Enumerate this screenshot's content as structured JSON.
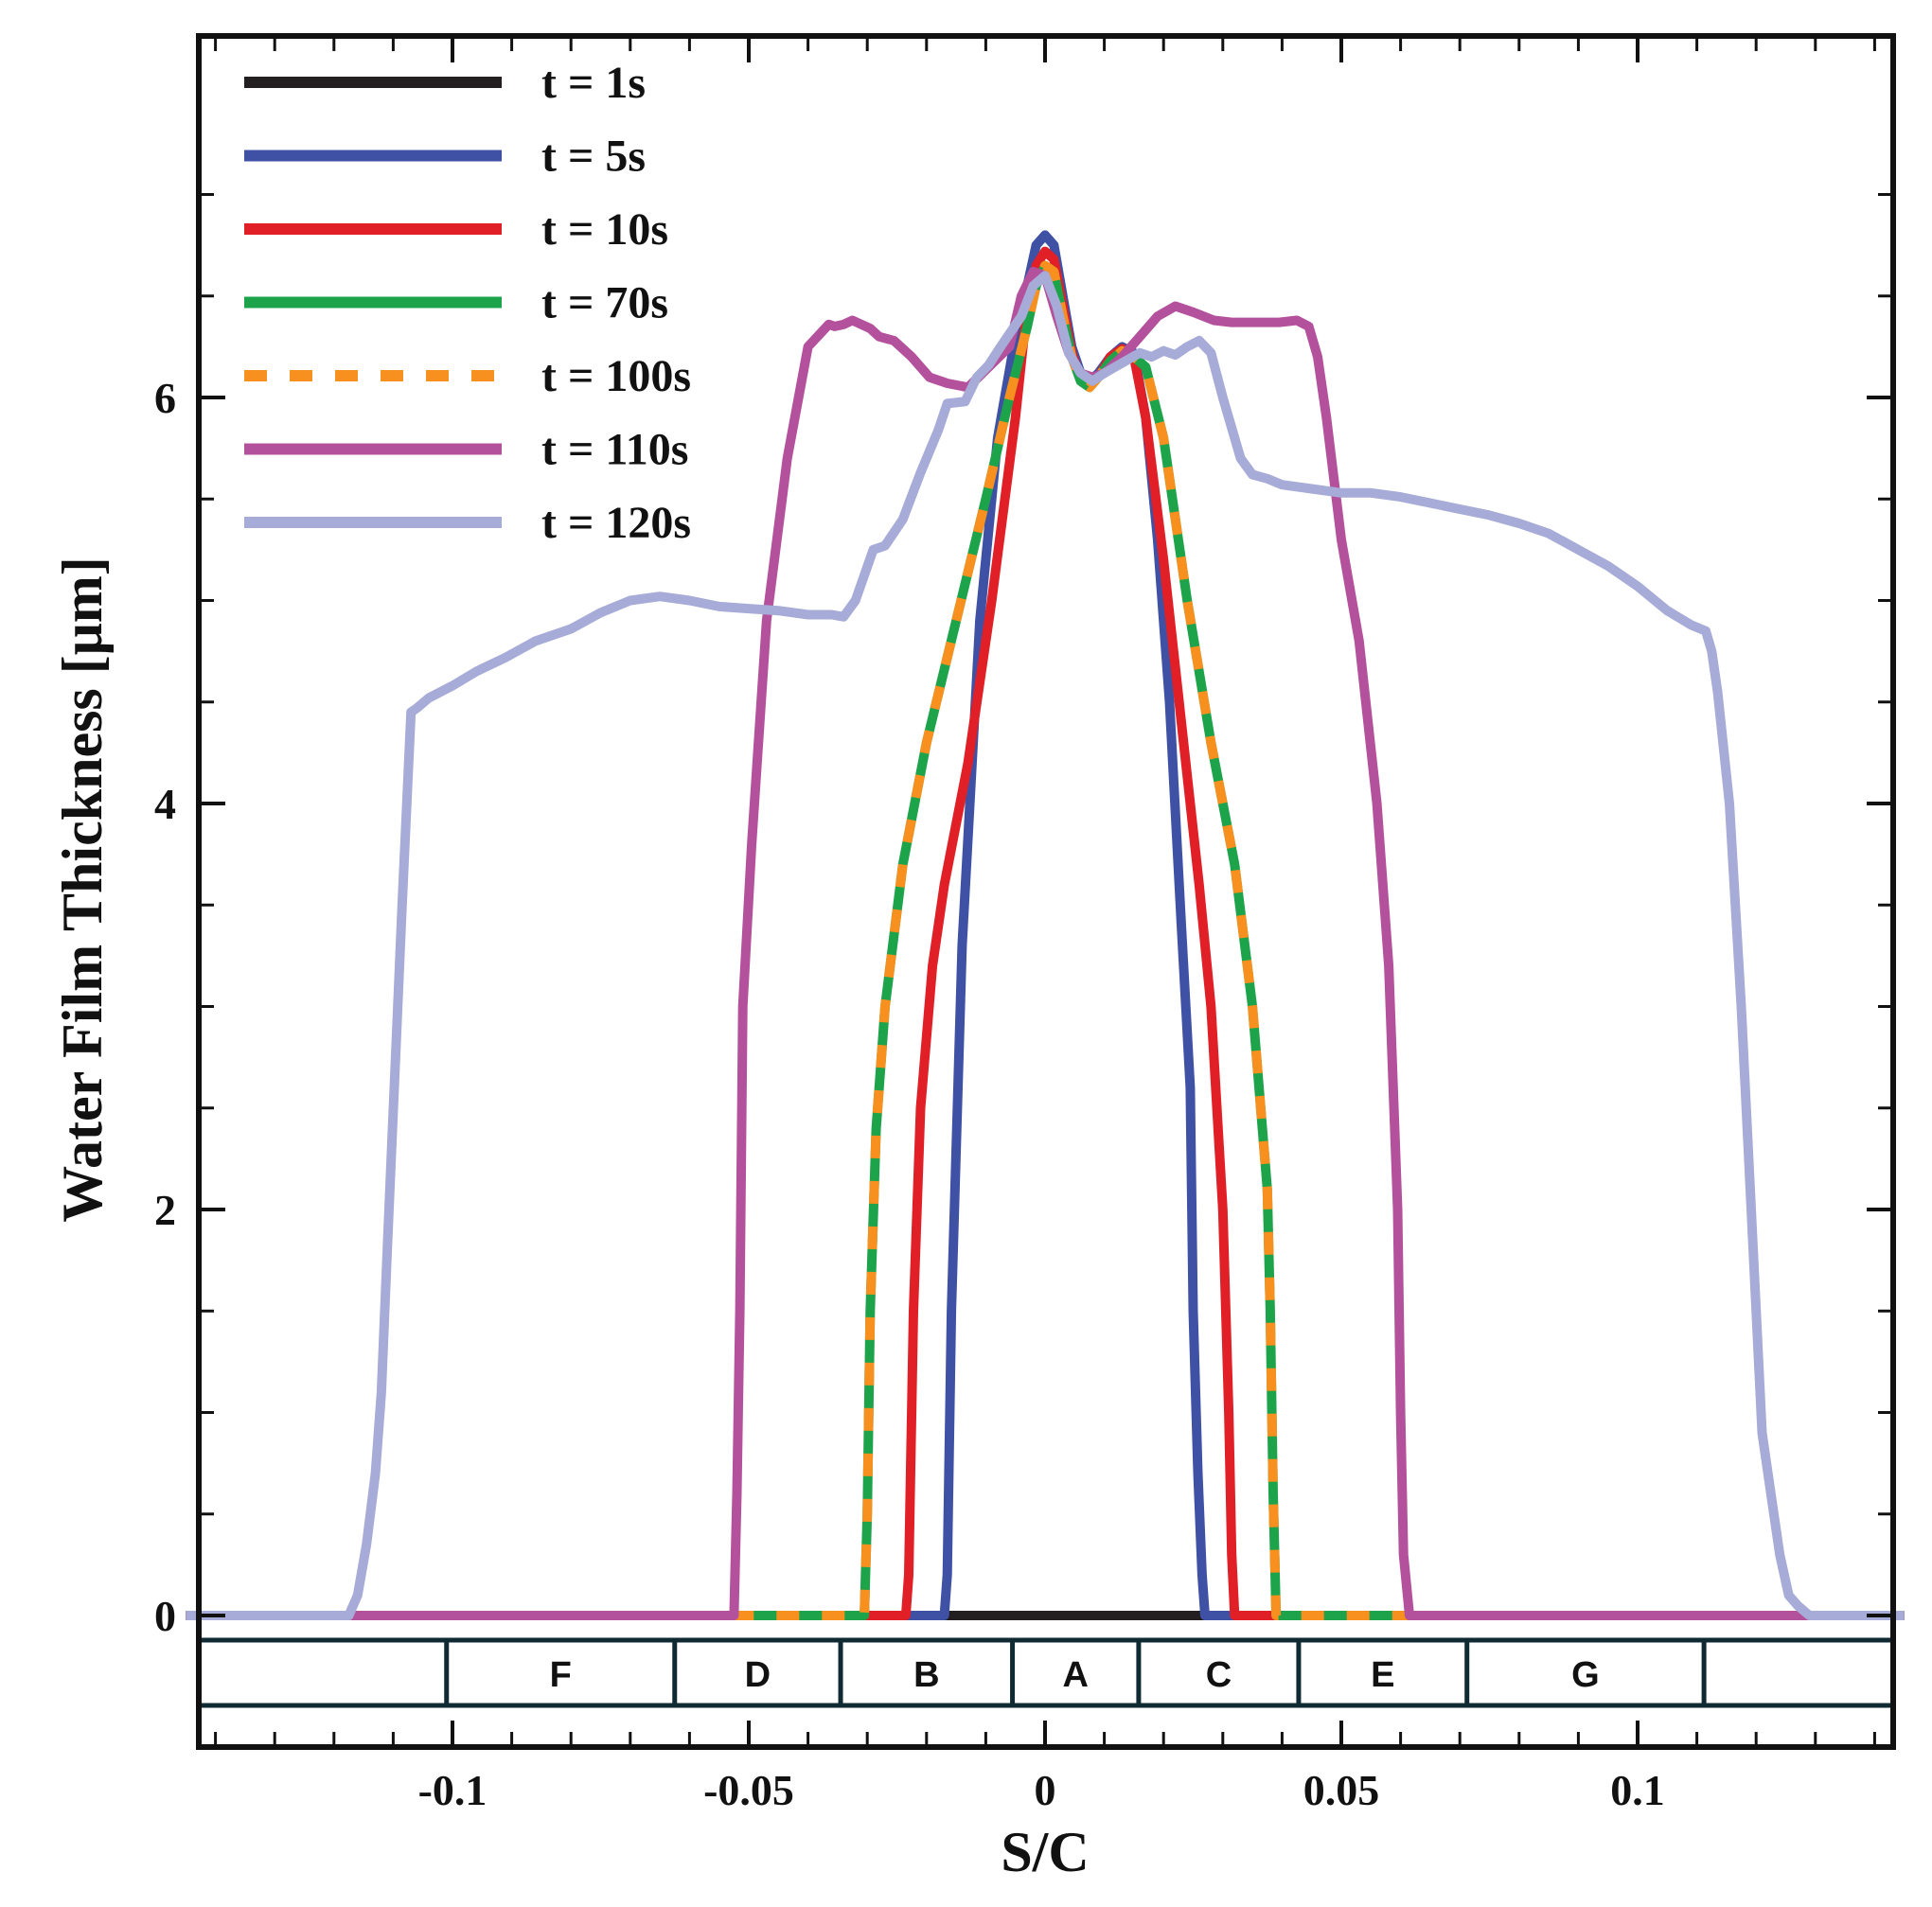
{
  "chart_data": {
    "type": "line",
    "xlabel": "S/C",
    "ylabel": "Water Film Thickness [μm]",
    "xlim": [
      -0.145,
      0.145
    ],
    "ylim": [
      -0.65,
      7.5
    ],
    "xticks": [
      {
        "value": -0.1,
        "label": "-0.1"
      },
      {
        "value": -0.05,
        "label": "-0.05"
      },
      {
        "value": 0,
        "label": "0"
      },
      {
        "value": 0.05,
        "label": "0.05"
      },
      {
        "value": 0.1,
        "label": "0.1"
      }
    ],
    "yticks": [
      {
        "value": 0,
        "label": "0"
      },
      {
        "value": 2,
        "label": "2"
      },
      {
        "value": 4,
        "label": "4"
      },
      {
        "value": 6,
        "label": "6"
      }
    ],
    "legend_position": "top-left",
    "grid": false,
    "zones": [
      {
        "label": "",
        "x0": -0.145,
        "x1": -0.101
      },
      {
        "label": "F",
        "x0": -0.101,
        "x1": -0.0625
      },
      {
        "label": "D",
        "x0": -0.0625,
        "x1": -0.0345
      },
      {
        "label": "B",
        "x0": -0.0345,
        "x1": -0.0055
      },
      {
        "label": "A",
        "x0": -0.0055,
        "x1": 0.0158
      },
      {
        "label": "C",
        "x0": 0.0158,
        "x1": 0.0428
      },
      {
        "label": "E",
        "x0": 0.0428,
        "x1": 0.0712
      },
      {
        "label": "G",
        "x0": 0.0712,
        "x1": 0.1112
      },
      {
        "label": "",
        "x0": 0.1112,
        "x1": 0.145
      }
    ],
    "series": [
      {
        "name": "t = 1s",
        "color": "#231f20",
        "dashed": false,
        "x": [
          -0.145,
          -0.0165,
          0.027,
          0.145
        ],
        "y": [
          0,
          0,
          0,
          0
        ]
      },
      {
        "name": "t = 5s",
        "color": "#3f51a5",
        "dashed": false,
        "x": [
          -0.145,
          -0.017,
          -0.0165,
          -0.0158,
          -0.014,
          -0.011,
          -0.008,
          -0.005,
          -0.003,
          -0.0015,
          0,
          0.0015,
          0.003,
          0.0045,
          0.006,
          0.0075,
          0.009,
          0.011,
          0.013,
          0.015,
          0.017,
          0.019,
          0.021,
          0.023,
          0.0245,
          0.025,
          0.0258,
          0.0265,
          0.027,
          0.145
        ],
        "y": [
          0,
          0,
          0.2,
          1.5,
          3.3,
          4.9,
          5.8,
          6.3,
          6.55,
          6.75,
          6.8,
          6.75,
          6.5,
          6.25,
          6.12,
          6.08,
          6.12,
          6.2,
          6.25,
          6.22,
          5.9,
          5.3,
          4.5,
          3.4,
          2.6,
          1.5,
          0.7,
          0.2,
          0,
          0
        ]
      },
      {
        "name": "t = 10s",
        "color": "#e01f26",
        "dashed": false,
        "x": [
          -0.145,
          -0.0235,
          -0.023,
          -0.0222,
          -0.021,
          -0.019,
          -0.017,
          -0.013,
          -0.009,
          -0.005,
          -0.003,
          -0.0015,
          0,
          0.0015,
          0.003,
          0.0045,
          0.006,
          0.0075,
          0.009,
          0.011,
          0.013,
          0.015,
          0.017,
          0.02,
          0.023,
          0.026,
          0.028,
          0.03,
          0.031,
          0.0315,
          0.032,
          0.145
        ],
        "y": [
          0,
          0,
          0.2,
          1.5,
          2.5,
          3.2,
          3.6,
          4.2,
          5.0,
          5.9,
          6.45,
          6.65,
          6.72,
          6.68,
          6.45,
          6.22,
          6.1,
          6.06,
          6.1,
          6.2,
          6.24,
          6.2,
          5.9,
          5.2,
          4.4,
          3.6,
          3.0,
          2.0,
          1.0,
          0.3,
          0,
          0
        ]
      },
      {
        "name": "t = 70s",
        "color": "#1da44b",
        "dashed": false,
        "x": [
          -0.145,
          -0.0305,
          -0.03,
          -0.0295,
          -0.0285,
          -0.027,
          -0.024,
          -0.02,
          -0.015,
          -0.01,
          -0.006,
          -0.003,
          -0.0015,
          0,
          0.0015,
          0.003,
          0.0045,
          0.006,
          0.0075,
          0.009,
          0.011,
          0.013,
          0.015,
          0.017,
          0.02,
          0.024,
          0.028,
          0.032,
          0.035,
          0.0375,
          0.038,
          0.0385,
          0.039,
          0.145
        ],
        "y": [
          0,
          0,
          0.5,
          1.5,
          2.4,
          3.0,
          3.7,
          4.3,
          4.9,
          5.5,
          6.0,
          6.35,
          6.55,
          6.65,
          6.62,
          6.4,
          6.2,
          6.08,
          6.05,
          6.1,
          6.18,
          6.23,
          6.2,
          6.15,
          5.8,
          5.0,
          4.3,
          3.7,
          3.0,
          2.1,
          1.5,
          0.6,
          0,
          0
        ]
      },
      {
        "name": "t = 100s",
        "color": "#f7901e",
        "dashed": true,
        "x": [
          -0.145,
          -0.0305,
          -0.03,
          -0.0295,
          -0.0285,
          -0.027,
          -0.024,
          -0.02,
          -0.015,
          -0.01,
          -0.006,
          -0.003,
          -0.0015,
          0,
          0.0015,
          0.003,
          0.0045,
          0.006,
          0.0075,
          0.009,
          0.011,
          0.013,
          0.015,
          0.017,
          0.02,
          0.024,
          0.028,
          0.032,
          0.035,
          0.0375,
          0.038,
          0.0385,
          0.039,
          0.145
        ],
        "y": [
          0,
          0,
          0.5,
          1.5,
          2.4,
          3.0,
          3.7,
          4.3,
          4.9,
          5.5,
          6.0,
          6.35,
          6.55,
          6.65,
          6.62,
          6.4,
          6.2,
          6.08,
          6.05,
          6.1,
          6.18,
          6.23,
          6.2,
          6.15,
          5.8,
          5.0,
          4.3,
          3.7,
          3.0,
          2.1,
          1.5,
          0.6,
          0,
          0
        ]
      },
      {
        "name": "t = 110s",
        "color": "#b4519c",
        "dashed": false,
        "x": [
          -0.145,
          -0.0525,
          -0.052,
          -0.0515,
          -0.051,
          -0.0495,
          -0.047,
          -0.0435,
          -0.04,
          -0.0365,
          -0.0355,
          -0.034,
          -0.0325,
          -0.0295,
          -0.028,
          -0.0255,
          -0.0225,
          -0.0195,
          -0.0165,
          -0.013,
          -0.0095,
          -0.006,
          -0.004,
          -0.002,
          0,
          0.002,
          0.004,
          0.006,
          0.008,
          0.01,
          0.013,
          0.016,
          0.019,
          0.022,
          0.025,
          0.0285,
          0.0315,
          0.035,
          0.0395,
          0.0425,
          0.0445,
          0.046,
          0.0475,
          0.05,
          0.053,
          0.056,
          0.058,
          0.0595,
          0.06,
          0.0605,
          0.0615,
          0.145
        ],
        "y": [
          0,
          0,
          0.6,
          1.5,
          3.0,
          3.8,
          4.9,
          5.7,
          6.25,
          6.36,
          6.35,
          6.36,
          6.38,
          6.34,
          6.3,
          6.28,
          6.2,
          6.1,
          6.07,
          6.05,
          6.15,
          6.25,
          6.5,
          6.62,
          6.6,
          6.4,
          6.22,
          6.12,
          6.1,
          6.12,
          6.2,
          6.3,
          6.4,
          6.45,
          6.42,
          6.38,
          6.37,
          6.37,
          6.37,
          6.38,
          6.35,
          6.2,
          5.9,
          5.3,
          4.8,
          4.0,
          3.2,
          2.0,
          1.0,
          0.3,
          0,
          0
        ]
      },
      {
        "name": "t = 120s",
        "color": "#a7abd7",
        "dashed": false,
        "x": [
          -0.145,
          -0.1175,
          -0.116,
          -0.1145,
          -0.113,
          -0.112,
          -0.111,
          -0.1085,
          -0.107,
          -0.106,
          -0.104,
          -0.1,
          -0.096,
          -0.091,
          -0.086,
          -0.08,
          -0.075,
          -0.07,
          -0.065,
          -0.06,
          -0.055,
          -0.05,
          -0.045,
          -0.04,
          -0.036,
          -0.034,
          -0.032,
          -0.029,
          -0.027,
          -0.024,
          -0.021,
          -0.018,
          -0.0165,
          -0.0135,
          -0.0115,
          -0.0095,
          -0.0075,
          -0.004,
          -0.002,
          0,
          0.002,
          0.004,
          0.006,
          0.008,
          0.01,
          0.013,
          0.016,
          0.018,
          0.02,
          0.022,
          0.024,
          0.026,
          0.028,
          0.03,
          0.033,
          0.035,
          0.0375,
          0.04,
          0.045,
          0.05,
          0.055,
          0.06,
          0.065,
          0.07,
          0.075,
          0.08,
          0.085,
          0.09,
          0.095,
          0.1,
          0.105,
          0.109,
          0.1115,
          0.1125,
          0.1135,
          0.1155,
          0.1175,
          0.1195,
          0.121,
          0.1225,
          0.124,
          0.1255,
          0.127,
          0.129,
          0.131,
          0.145
        ],
        "y": [
          0,
          0,
          0.1,
          0.35,
          0.7,
          1.1,
          1.8,
          3.5,
          4.45,
          4.47,
          4.52,
          4.58,
          4.65,
          4.72,
          4.8,
          4.86,
          4.94,
          5.0,
          5.02,
          5.0,
          4.97,
          4.96,
          4.95,
          4.93,
          4.93,
          4.92,
          5.0,
          5.25,
          5.27,
          5.4,
          5.63,
          5.84,
          5.97,
          5.98,
          6.1,
          6.16,
          6.25,
          6.4,
          6.55,
          6.6,
          6.45,
          6.22,
          6.12,
          6.08,
          6.12,
          6.17,
          6.22,
          6.2,
          6.23,
          6.21,
          6.25,
          6.28,
          6.22,
          6.0,
          5.7,
          5.62,
          5.6,
          5.57,
          5.55,
          5.53,
          5.53,
          5.51,
          5.48,
          5.45,
          5.42,
          5.38,
          5.33,
          5.25,
          5.17,
          5.07,
          4.95,
          4.88,
          4.85,
          4.75,
          4.55,
          4.0,
          3.0,
          1.8,
          0.9,
          0.6,
          0.3,
          0.1,
          0.05,
          0,
          0,
          0
        ]
      }
    ]
  }
}
